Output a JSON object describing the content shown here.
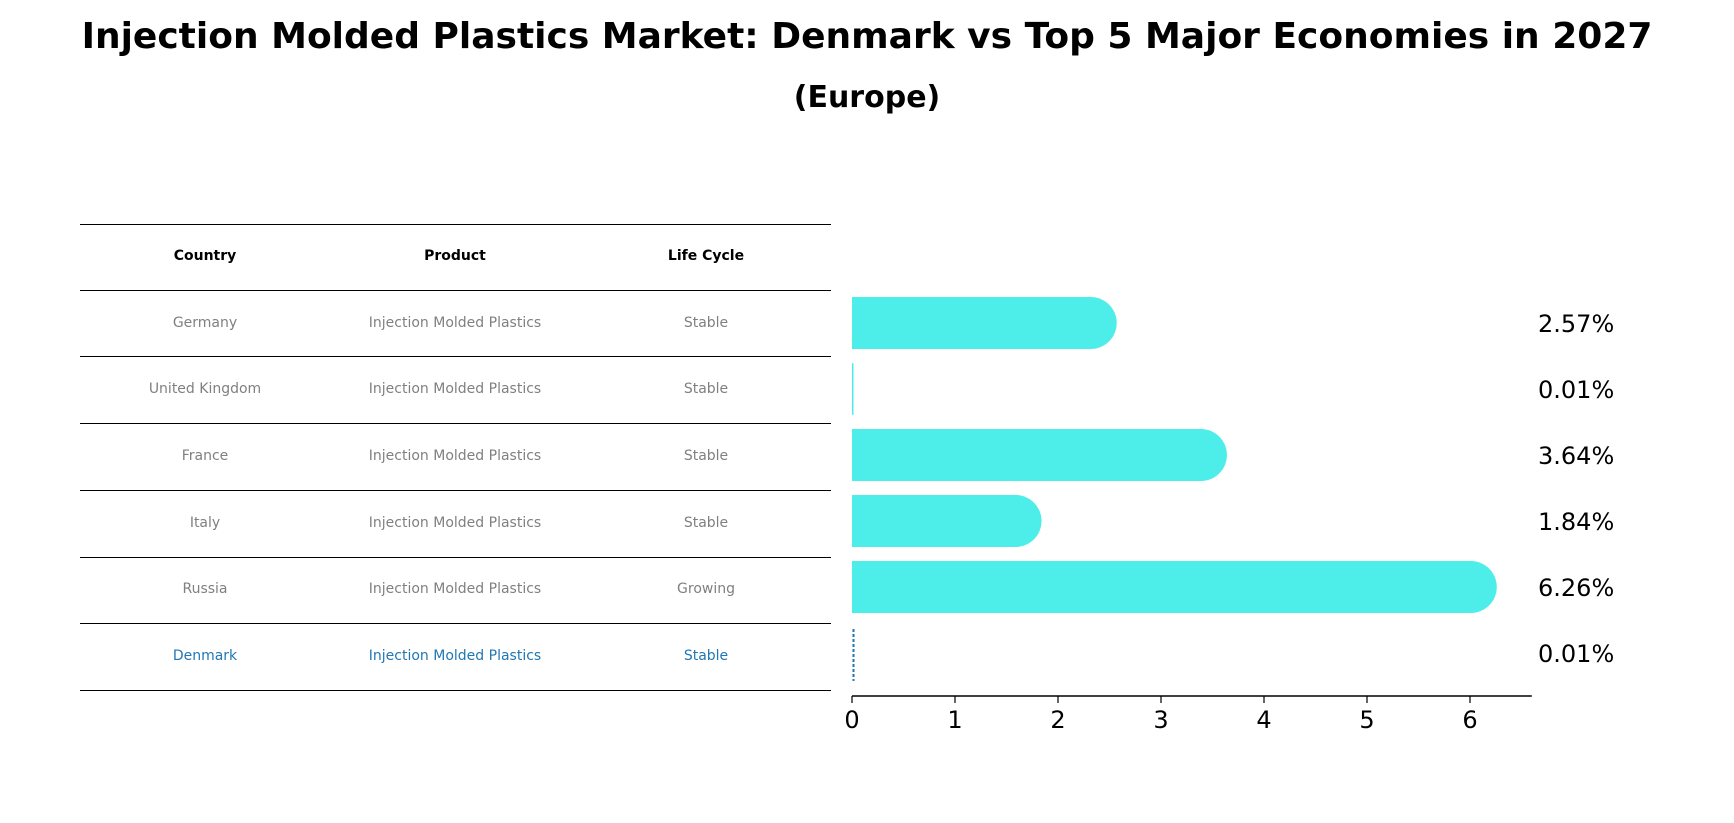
{
  "title": "Injection Molded Plastics Market: Denmark vs Top 5 Major Economies in 2027",
  "subtitle": "(Europe)",
  "table": {
    "headers": [
      "Country",
      "Product",
      "Life Cycle"
    ],
    "rows": [
      [
        "Germany",
        "Injection Molded Plastics",
        "Stable"
      ],
      [
        "United Kingdom",
        "Injection Molded Plastics",
        "Stable"
      ],
      [
        "France",
        "Injection Molded Plastics",
        "Stable"
      ],
      [
        "Italy",
        "Injection Molded Plastics",
        "Stable"
      ],
      [
        "Russia",
        "Injection Molded Plastics",
        "Growing"
      ],
      [
        "Denmark",
        "Injection Molded Plastics",
        "Stable"
      ]
    ],
    "highlight_row": 5,
    "highlight_color": "#1f77b4",
    "text_color": "#808080"
  },
  "chart_data": {
    "type": "bar",
    "orientation": "horizontal",
    "categories": [
      "Germany",
      "United Kingdom",
      "France",
      "Italy",
      "Russia",
      "Denmark"
    ],
    "values": [
      2.57,
      0.01,
      3.64,
      1.84,
      6.26,
      0.01
    ],
    "value_labels": [
      "2.57%",
      "0.01%",
      "3.64%",
      "1.84%",
      "6.26%",
      "0.01%"
    ],
    "xlim": [
      0,
      6.6
    ],
    "xticks": [
      0,
      1,
      2,
      3,
      4,
      5,
      6
    ],
    "bar_color": "#4deeea",
    "highlight_index": 5,
    "highlight_color": "#1f77b4",
    "grid": false
  }
}
